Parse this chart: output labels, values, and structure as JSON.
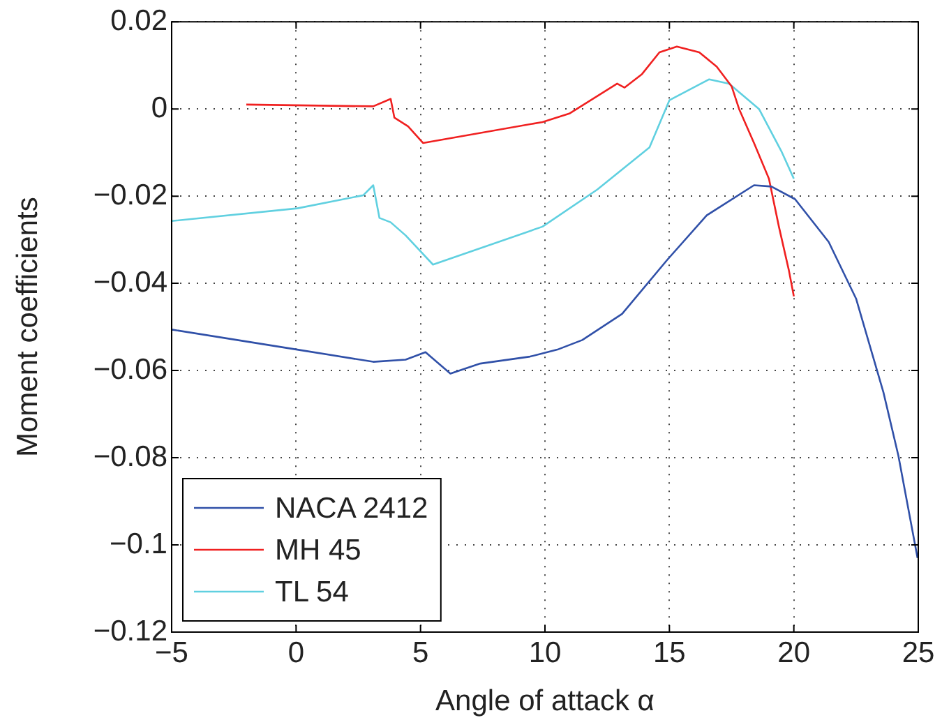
{
  "chart_data": {
    "type": "line",
    "xlabel": "Angle of attack α",
    "ylabel": "Moment coefficients",
    "xlim": [
      -5,
      25
    ],
    "xticks": [
      {
        "value": -5,
        "label": "−5"
      },
      0,
      5,
      10,
      15,
      20,
      25
    ],
    "ylim": [
      -0.12,
      0.02
    ],
    "yticks": [
      {
        "value": -0.12,
        "label": "−0.12"
      },
      {
        "value": -0.1,
        "label": "−0.1"
      },
      {
        "value": -0.08,
        "label": "−0.08"
      },
      {
        "value": -0.06,
        "label": "−0.06"
      },
      {
        "value": -0.04,
        "label": "−0.04"
      },
      {
        "value": -0.02,
        "label": "−0.02"
      },
      0,
      0.02
    ],
    "grid": true,
    "legend": "bottom left",
    "marker": "none",
    "line_style": "solid",
    "series": [
      {
        "name": "NACA 2412",
        "color": "#3050a8",
        "x": [
          -5,
          0.05,
          3.1,
          4.4,
          5.2,
          6.2,
          7.4,
          9.4,
          10.5,
          11.5,
          13.1,
          14.9,
          16.5,
          18.4,
          19.1,
          20.05,
          21.4,
          22.5,
          23.6,
          24.2,
          24.97
        ],
        "values": [
          -0.0506,
          -0.0552,
          -0.058,
          -0.0575,
          -0.0558,
          -0.0607,
          -0.0584,
          -0.0568,
          -0.0552,
          -0.053,
          -0.047,
          -0.0347,
          -0.0244,
          -0.0175,
          -0.0178,
          -0.0207,
          -0.0305,
          -0.0435,
          -0.065,
          -0.0795,
          -0.103
        ]
      },
      {
        "name": "MH 45",
        "color": "#f02020",
        "x": [
          -2,
          3.1,
          3.8,
          3.95,
          4.5,
          5.1,
          9.9,
          11,
          12.9,
          13.2,
          13.9,
          14.6,
          15.3,
          16.2,
          16.9,
          17.5,
          17.8,
          18.4,
          19,
          19.4,
          19.8,
          20
        ],
        "values": [
          0.001,
          0.0006,
          0.0023,
          -0.002,
          -0.004,
          -0.0078,
          -0.003,
          -0.001,
          0.0058,
          0.0049,
          0.008,
          0.013,
          0.0143,
          0.013,
          0.0097,
          0.0052,
          0,
          -0.0078,
          -0.016,
          -0.027,
          -0.037,
          -0.043
        ]
      },
      {
        "name": "TL 54",
        "color": "#60d0e0",
        "x": [
          -5,
          0.05,
          2.7,
          3.1,
          3.35,
          3.8,
          4.4,
          5.5,
          9.9,
          12.1,
          14.2,
          15,
          16.6,
          17.4,
          18.6,
          19.5,
          20
        ],
        "values": [
          -0.0257,
          -0.0228,
          -0.0198,
          -0.0175,
          -0.025,
          -0.026,
          -0.029,
          -0.0357,
          -0.027,
          -0.0185,
          -0.0088,
          0.002,
          0.0068,
          0.0058,
          0,
          -0.0097,
          -0.016
        ]
      }
    ]
  }
}
